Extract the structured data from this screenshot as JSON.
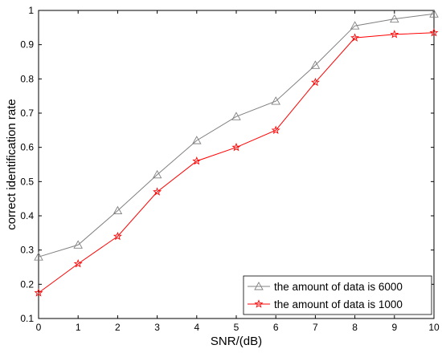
{
  "chart_data": {
    "type": "line",
    "title": "",
    "xlabel": "SNR/(dB)",
    "ylabel": "correct identification rate",
    "xlim": [
      0,
      10
    ],
    "ylim": [
      0.1,
      1
    ],
    "x_ticks": [
      "0",
      "1",
      "2",
      "3",
      "4",
      "5",
      "6",
      "7",
      "8",
      "9",
      "10"
    ],
    "y_ticks": [
      "0.1",
      "0.2",
      "0.3",
      "0.4",
      "0.5",
      "0.6",
      "0.7",
      "0.8",
      "0.9",
      "1"
    ],
    "grid": false,
    "legend_position": "bottom-right",
    "x": [
      0,
      1,
      2,
      3,
      4,
      5,
      6,
      7,
      8,
      9,
      10
    ],
    "series": [
      {
        "name": "the amount of data is 6000",
        "color": "#808080",
        "marker": "triangle",
        "values": [
          0.28,
          0.315,
          0.415,
          0.52,
          0.62,
          0.69,
          0.735,
          0.84,
          0.955,
          0.975,
          0.99
        ]
      },
      {
        "name": "the amount of data is 1000",
        "color": "#ff0000",
        "marker": "star",
        "values": [
          0.175,
          0.26,
          0.34,
          0.47,
          0.56,
          0.6,
          0.65,
          0.79,
          0.92,
          0.93,
          0.935
        ]
      }
    ]
  }
}
